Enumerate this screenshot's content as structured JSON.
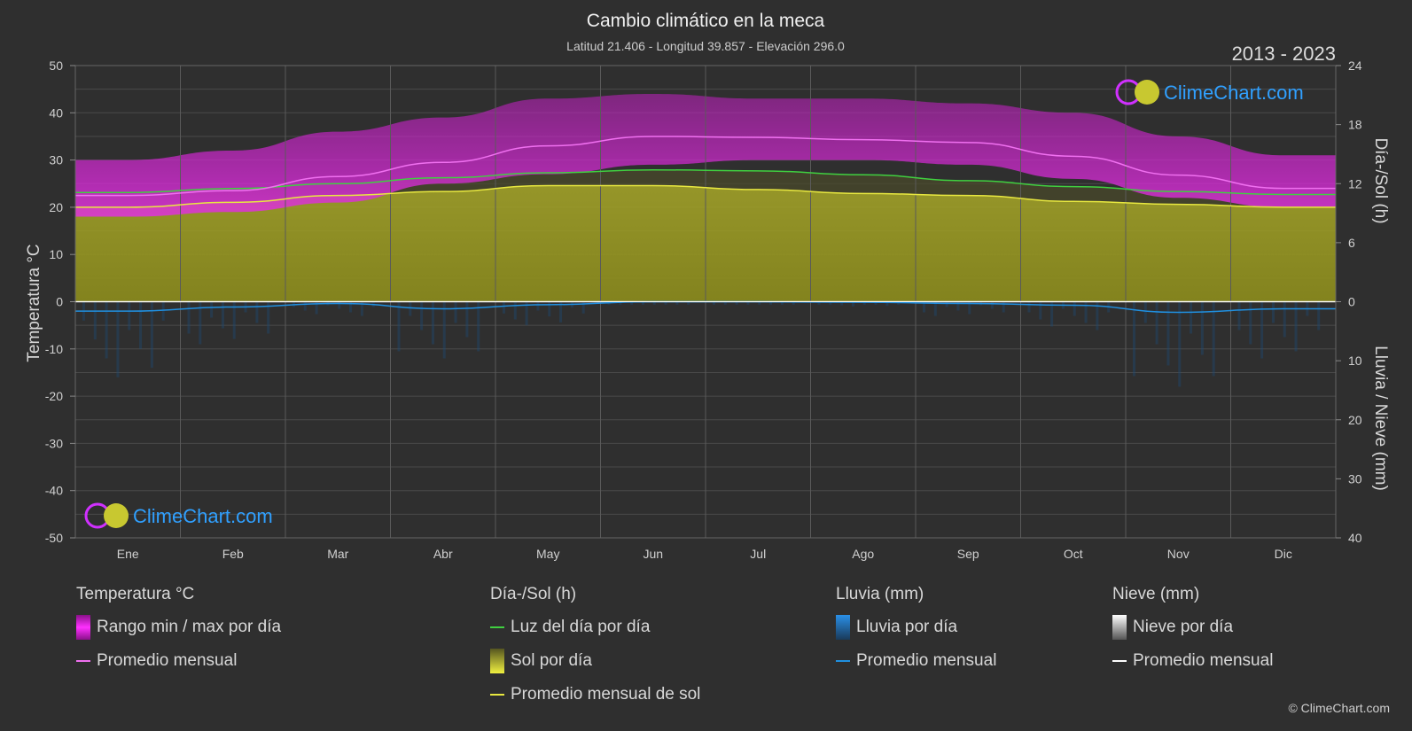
{
  "chart_data": {
    "type": "area",
    "title": "Cambio climático en la meca",
    "subtitle": "Latitud 21.406 - Longitud 39.857 - Elevación 296.0",
    "period": "2013 - 2023",
    "categories": [
      "Ene",
      "Feb",
      "Mar",
      "Abr",
      "May",
      "Jun",
      "Jul",
      "Ago",
      "Sep",
      "Oct",
      "Nov",
      "Dic"
    ],
    "left_axis": {
      "label": "Temperatura °C",
      "range": [
        -50,
        50
      ],
      "ticks": [
        50,
        40,
        30,
        20,
        10,
        0,
        -10,
        -20,
        -30,
        -40,
        -50
      ]
    },
    "right_axis_top": {
      "label": "Día-/Sol (h)",
      "range": [
        0,
        24
      ],
      "ticks": [
        24,
        18,
        12,
        6,
        0
      ]
    },
    "right_axis_bottom": {
      "label": "Lluvia / Nieve (mm)",
      "range": [
        0,
        40
      ],
      "ticks": [
        0,
        10,
        20,
        30,
        40
      ]
    },
    "grid": true,
    "series": [
      {
        "name": "Rango min / max por día",
        "color": "#d020d0",
        "min": [
          18,
          19,
          21,
          25,
          27,
          29,
          30,
          30,
          29,
          26,
          22,
          20
        ],
        "max": [
          30,
          32,
          36,
          39,
          43,
          44,
          43,
          43,
          42,
          40,
          35,
          31
        ]
      },
      {
        "name": "Promedio mensual",
        "color": "#f070f0",
        "values": [
          22.5,
          23.5,
          26.5,
          29.5,
          33,
          35,
          34.8,
          34.3,
          33.7,
          30.8,
          26.8,
          24
        ]
      },
      {
        "name": "Luz del día por día",
        "color": "#40d040",
        "values": [
          11.1,
          11.5,
          12.0,
          12.6,
          13.1,
          13.4,
          13.3,
          12.9,
          12.3,
          11.7,
          11.2,
          10.9
        ]
      },
      {
        "name": "Sol por día",
        "color": "#b0b020",
        "values": [
          9.6,
          10.1,
          10.8,
          11.2,
          11.8,
          11.8,
          11.4,
          11.0,
          10.8,
          10.2,
          9.9,
          9.6
        ]
      },
      {
        "name": "Promedio mensual de sol",
        "color": "#e8e840",
        "values": [
          9.6,
          10.1,
          10.8,
          11.2,
          11.8,
          11.8,
          11.4,
          11.0,
          10.8,
          10.2,
          9.9,
          9.6
        ]
      },
      {
        "name": "Lluvia por día",
        "color": "#2080d0"
      },
      {
        "name": "Promedio mensual",
        "color": "#2090e0",
        "values": [
          1.6,
          0.9,
          0.3,
          1.2,
          0.5,
          0.0,
          0.0,
          0.1,
          0.3,
          0.6,
          1.8,
          1.2
        ]
      },
      {
        "name": "Nieve por día",
        "color": "#cccccc"
      },
      {
        "name": "Promedio mensual",
        "color": "#ffffff",
        "values": [
          0,
          0,
          0,
          0,
          0,
          0,
          0,
          0,
          0,
          0,
          0,
          0
        ]
      }
    ]
  },
  "logo_text": "ClimeChart.com",
  "legend": {
    "temp": {
      "heading": "Temperatura °C",
      "item1": "Rango min / max por día",
      "item2": "Promedio mensual"
    },
    "sun": {
      "heading": "Día-/Sol (h)",
      "item1": "Luz del día por día",
      "item2": "Sol por día",
      "item3": "Promedio mensual de sol"
    },
    "rain": {
      "heading": "Lluvia (mm)",
      "item1": "Lluvia por día",
      "item2": "Promedio mensual"
    },
    "snow": {
      "heading": "Nieve (mm)",
      "item1": "Nieve por día",
      "item2": "Promedio mensual"
    }
  },
  "copyright": "© ClimeChart.com"
}
